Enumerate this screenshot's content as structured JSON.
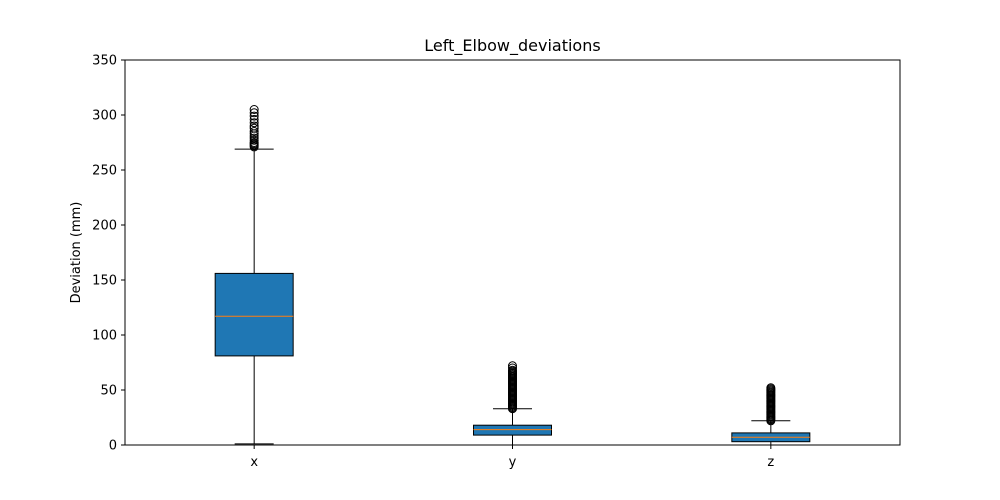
{
  "chart_data": {
    "type": "box",
    "title": "Left_Elbow_deviations",
    "xlabel": "",
    "ylabel": "Deviation (mm)",
    "ylim": [
      0,
      350
    ],
    "yticks": [
      0,
      50,
      100,
      150,
      200,
      250,
      300,
      350
    ],
    "grid": false,
    "categories": [
      "x",
      "y",
      "z"
    ],
    "colors": {
      "box_fill": "#1f77b4",
      "median": "#ff7f0e",
      "edge": "#000000"
    },
    "boxes": [
      {
        "category": "x",
        "whisker_low": 1,
        "q1": 81,
        "median": 117,
        "q3": 156,
        "whisker_high": 269,
        "outliers": [
          271,
          272,
          273,
          274,
          275,
          277,
          279,
          281,
          283,
          285,
          288,
          290,
          293,
          296,
          299,
          302,
          305
        ]
      },
      {
        "category": "y",
        "whisker_low": 0,
        "q1": 9,
        "median": 14,
        "q3": 18,
        "whisker_high": 33,
        "outliers": [
          33,
          34,
          35,
          36,
          37,
          38,
          39,
          40,
          41,
          42,
          43,
          44,
          45,
          46,
          47,
          48,
          49,
          50,
          51,
          52,
          53,
          54,
          55,
          56,
          57,
          58,
          59,
          60,
          61,
          62,
          63,
          64,
          65,
          66,
          67,
          68,
          70,
          72
        ]
      },
      {
        "category": "z",
        "whisker_low": 0,
        "q1": 3,
        "median": 7,
        "q3": 11,
        "whisker_high": 22,
        "outliers": [
          22,
          23,
          24,
          25,
          26,
          27,
          28,
          29,
          30,
          31,
          32,
          33,
          34,
          35,
          36,
          37,
          38,
          39,
          40,
          41,
          42,
          43,
          44,
          45,
          46,
          47,
          48,
          49,
          50,
          51,
          52
        ]
      }
    ]
  }
}
